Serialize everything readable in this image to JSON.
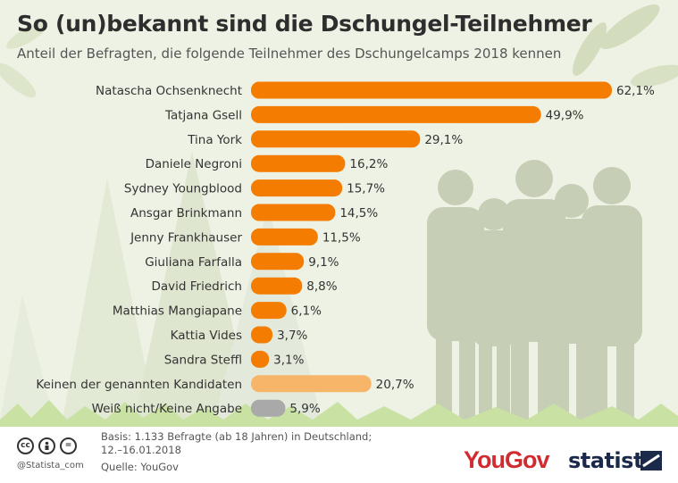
{
  "title": "So (un)bekannt sind die Dschungel-Teilnehmer",
  "subtitle": "Anteil der Befragten, die folgende Teilnehmer des Dschungelcamps 2018 kennen",
  "chart_data": {
    "type": "bar",
    "orientation": "horizontal",
    "categories": [
      "Natascha Ochsenknecht",
      "Tatjana Gsell",
      "Tina York",
      "Daniele Negroni",
      "Sydney Youngblood",
      "Ansgar Brinkmann",
      "Jenny Frankhauser",
      "Giuliana Farfalla",
      "David Friedrich",
      "Matthias Mangiapane",
      "Kattia Vides",
      "Sandra Steffl",
      "Keinen der genannten Kandidaten",
      "Weiß nicht/Keine Angabe"
    ],
    "values": [
      62.1,
      49.9,
      29.1,
      16.2,
      15.7,
      14.5,
      11.5,
      9.1,
      8.8,
      6.1,
      3.7,
      3.1,
      20.7,
      5.9
    ],
    "value_labels": [
      "62,1%",
      "49,9%",
      "29,1%",
      "16,2%",
      "15,7%",
      "14,5%",
      "11,5%",
      "9,1%",
      "8,8%",
      "6,1%",
      "3,7%",
      "3,1%",
      "20,7%",
      "5,9%"
    ],
    "bar_colors": [
      "#f47c00",
      "#f47c00",
      "#f47c00",
      "#f47c00",
      "#f47c00",
      "#f47c00",
      "#f47c00",
      "#f47c00",
      "#f47c00",
      "#f47c00",
      "#f47c00",
      "#f47c00",
      "#f7b56a",
      "#a9a9a9"
    ],
    "xlim": [
      0,
      65
    ],
    "grid": false,
    "legend": "none"
  },
  "footer": {
    "basis_line1": "Basis: 1.133 Befragte (ab 18 Jahren) in Deutschland;",
    "basis_line2": "12.–16.01.2018",
    "source": "Quelle: YouGov",
    "handle": "@Statista_com"
  },
  "logos": {
    "yougov_you": "You",
    "yougov_gov": "Gov",
    "statista": "statista"
  },
  "icons": [
    "cc-icon",
    "person-icon",
    "equals-icon"
  ],
  "colors": {
    "accent": "#f47c00",
    "none_bar": "#f7b56a",
    "unknown_bar": "#a9a9a9",
    "background": "#eef2e4"
  }
}
